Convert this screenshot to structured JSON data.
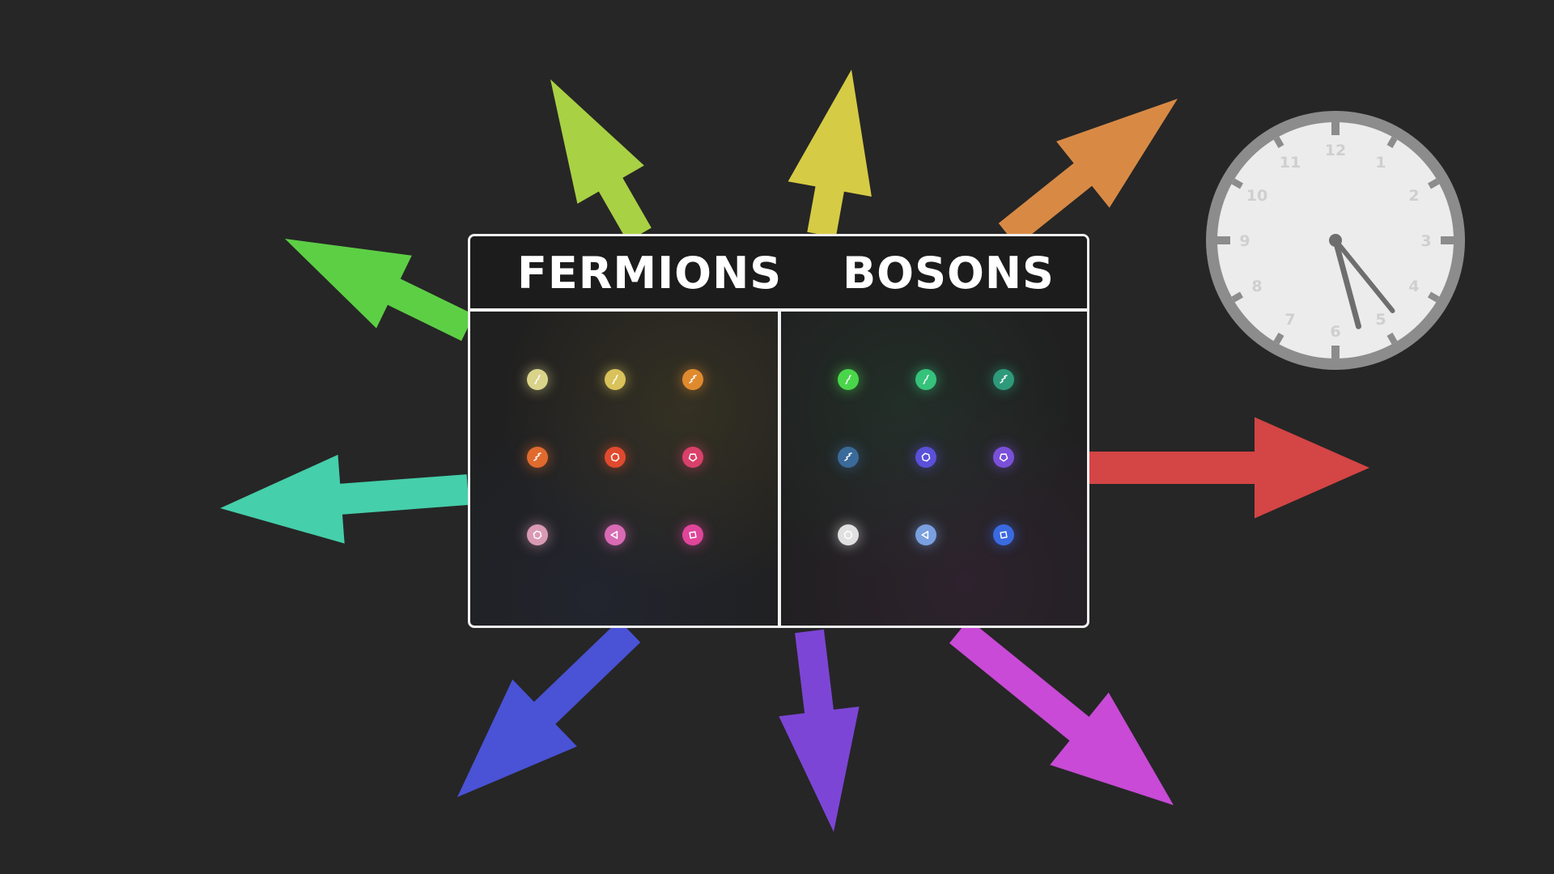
{
  "table": {
    "left_heading": "FERMIONS",
    "right_heading": "BOSONS"
  },
  "colors": {
    "background": "#262626",
    "panel_border": "#f2f2f2",
    "heading_text": "#ffffff"
  },
  "arrows": [
    {
      "name": "arrow-yellow-green",
      "color": "#a9d144"
    },
    {
      "name": "arrow-yellow",
      "color": "#d6cb45"
    },
    {
      "name": "arrow-orange",
      "color": "#d88a45"
    },
    {
      "name": "arrow-green",
      "color": "#5dcf45"
    },
    {
      "name": "arrow-teal",
      "color": "#45cfaa"
    },
    {
      "name": "arrow-red",
      "color": "#d44545"
    },
    {
      "name": "arrow-blue",
      "color": "#4a52d6"
    },
    {
      "name": "arrow-purple",
      "color": "#7d45d6"
    },
    {
      "name": "arrow-magenta",
      "color": "#c84ad6"
    }
  ],
  "fermions": [
    {
      "color": "#d9d48a",
      "glyph": "wave-icon"
    },
    {
      "color": "#d9c25a",
      "glyph": "wave-icon"
    },
    {
      "color": "#e08a2e",
      "glyph": "zigzag-icon"
    },
    {
      "color": "#e06a2e",
      "glyph": "zigzag-icon"
    },
    {
      "color": "#e04a2e",
      "glyph": "hexagon-icon"
    },
    {
      "color": "#d9406a",
      "glyph": "pentagon-icon"
    },
    {
      "color": "#d99ab4",
      "glyph": "hexagon-icon"
    },
    {
      "color": "#d96ab4",
      "glyph": "triangle-icon"
    },
    {
      "color": "#e0459a",
      "glyph": "square-icon"
    }
  ],
  "bosons": [
    {
      "color": "#4ad64a",
      "glyph": "wave-icon"
    },
    {
      "color": "#35c27a",
      "glyph": "wave-icon"
    },
    {
      "color": "#2e9a7a",
      "glyph": "zigzag-icon"
    },
    {
      "color": "#3a6a9a",
      "glyph": "zigzag-icon"
    },
    {
      "color": "#5a50d9",
      "glyph": "hexagon-icon"
    },
    {
      "color": "#7a50d9",
      "glyph": "pentagon-icon"
    },
    {
      "color": "#e0e0e0",
      "glyph": "hexagon-icon"
    },
    {
      "color": "#7aa0e0",
      "glyph": "triangle-icon"
    },
    {
      "color": "#3a6ae0",
      "glyph": "square-icon"
    }
  ],
  "clock": {
    "numerals": [
      "12",
      "1",
      "2",
      "3",
      "4",
      "5",
      "6",
      "7",
      "8",
      "9",
      "10",
      "11"
    ],
    "face_color": "#ececec",
    "rim_color": "#8c8c8c",
    "hand_color": "#6e6e6e",
    "hour_value": 4.7,
    "minute_value": 5.5
  }
}
